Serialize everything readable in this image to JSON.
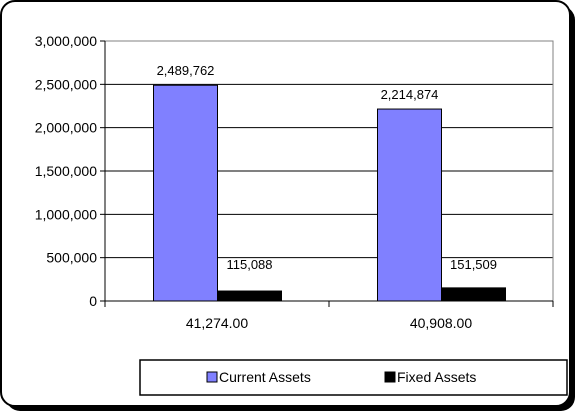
{
  "chart_data": {
    "type": "bar",
    "title": "",
    "xlabel": "",
    "ylabel": "",
    "categories": [
      "41,274.00",
      "40,908.00"
    ],
    "series": [
      {
        "name": "Current Assets",
        "values": [
          2489762,
          2214874
        ],
        "labels": [
          "2,489,762",
          "2,214,874"
        ],
        "color": "#8080ff"
      },
      {
        "name": "Fixed Assets",
        "values": [
          115088,
          151509
        ],
        "labels": [
          "115,088",
          "151,509"
        ],
        "color": "#000000"
      }
    ],
    "ylim": [
      0,
      3000000
    ],
    "yticks": [
      {
        "value": 0,
        "label": "0"
      },
      {
        "value": 500000,
        "label": "500,000"
      },
      {
        "value": 1000000,
        "label": "1,000,000"
      },
      {
        "value": 1500000,
        "label": "1,500,000"
      },
      {
        "value": 2000000,
        "label": "2,000,000"
      },
      {
        "value": 2500000,
        "label": "2,500,000"
      },
      {
        "value": 3000000,
        "label": "3,000,000"
      }
    ],
    "grid": true,
    "legend_position": "bottom-right",
    "colors": {
      "plot_background": "#ffffff",
      "gridline": "#000000",
      "frame": "#000000"
    }
  }
}
